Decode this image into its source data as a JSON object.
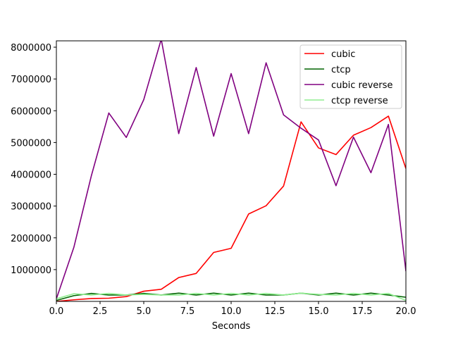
{
  "chart_data": {
    "type": "line",
    "title": "",
    "xlabel": "Seconds",
    "ylabel": "",
    "xlim": [
      0,
      20
    ],
    "ylim": [
      0,
      8200000
    ],
    "xticks": [
      0,
      2.5,
      5,
      7.5,
      10,
      12.5,
      15,
      17.5,
      20
    ],
    "xtick_labels": [
      "0.0",
      "2.5",
      "5.0",
      "7.5",
      "10.0",
      "12.5",
      "15.0",
      "17.5",
      "20.0"
    ],
    "yticks": [
      1000000,
      2000000,
      3000000,
      4000000,
      5000000,
      6000000,
      7000000,
      8000000
    ],
    "ytick_labels": [
      "1000000",
      "2000000",
      "3000000",
      "4000000",
      "5000000",
      "6000000",
      "7000000",
      "8000000"
    ],
    "grid": false,
    "legend_position": "top-right",
    "x": [
      0,
      1,
      2,
      3,
      4,
      5,
      6,
      7,
      8,
      9,
      10,
      11,
      12,
      13,
      14,
      15,
      16,
      17,
      18,
      19,
      20
    ],
    "series": [
      {
        "name": "cubic",
        "color": "#ff0000",
        "values": [
          0,
          50000,
          90000,
          100000,
          150000,
          320000,
          380000,
          750000,
          880000,
          1540000,
          1670000,
          2750000,
          3010000,
          3630000,
          5650000,
          4830000,
          4620000,
          5230000,
          5470000,
          5830000,
          4180000
        ]
      },
      {
        "name": "ctcp",
        "color": "#006400",
        "values": [
          30000,
          180000,
          250000,
          200000,
          200000,
          250000,
          200000,
          260000,
          200000,
          260000,
          200000,
          260000,
          200000,
          200000,
          260000,
          200000,
          260000,
          200000,
          260000,
          200000,
          130000
        ]
      },
      {
        "name": "cubic reverse",
        "color": "#800080",
        "values": [
          80000,
          1700000,
          3950000,
          5930000,
          5160000,
          6350000,
          8250000,
          5280000,
          7360000,
          5200000,
          7170000,
          5280000,
          7510000,
          5870000,
          5450000,
          5080000,
          3640000,
          5170000,
          4050000,
          5570000,
          950000
        ]
      },
      {
        "name": "ctcp reverse",
        "color": "#90ee90",
        "values": [
          80000,
          240000,
          200000,
          250000,
          200000,
          220000,
          200000,
          200000,
          250000,
          200000,
          250000,
          200000,
          250000,
          200000,
          260000,
          220000,
          200000,
          250000,
          200000,
          250000,
          30000
        ]
      }
    ]
  }
}
